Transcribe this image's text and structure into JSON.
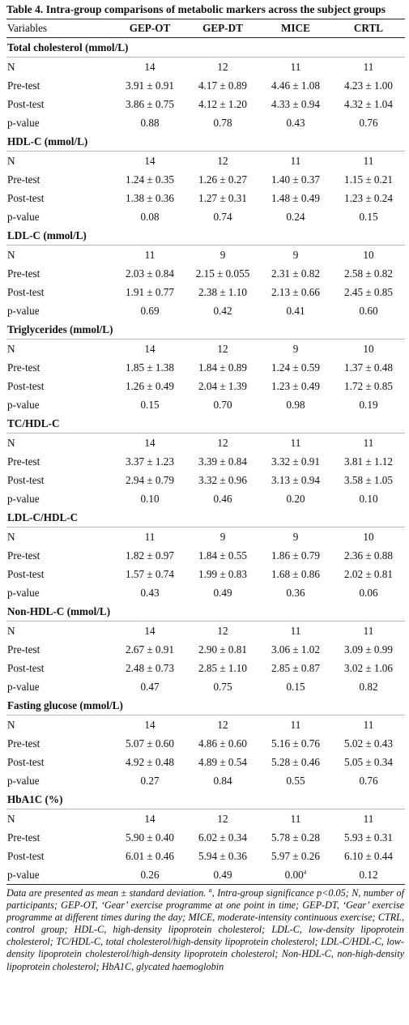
{
  "caption": "Table 4. Intra-group comparisons of metabolic markers across the subject groups",
  "columns": [
    "Variables",
    "GEP-OT",
    "GEP-DT",
    "MICE",
    "CRTL"
  ],
  "sections": [
    {
      "title": "Total cholesterol (mmol/L)",
      "rows": [
        {
          "label": "N",
          "values": [
            "14",
            "12",
            "11",
            "11"
          ]
        },
        {
          "label": "Pre-test",
          "values": [
            "3.91 ± 0.91",
            "4.17 ± 0.89",
            "4.46 ± 1.08",
            "4.23 ± 1.00"
          ]
        },
        {
          "label": "Post-test",
          "values": [
            "3.86 ± 0.75",
            "4.12 ± 1.20",
            "4.33 ± 0.94",
            "4.32 ± 1.04"
          ]
        },
        {
          "label": "p-value",
          "values": [
            "0.88",
            "0.78",
            "0.43",
            "0.76"
          ]
        }
      ]
    },
    {
      "title": "HDL-C (mmol/L)",
      "rows": [
        {
          "label": "N",
          "values": [
            "14",
            "12",
            "11",
            "11"
          ]
        },
        {
          "label": "Pre-test",
          "values": [
            "1.24 ± 0.35",
            "1.26 ± 0.27",
            "1.40 ± 0.37",
            "1.15 ± 0.21"
          ]
        },
        {
          "label": "Post-test",
          "values": [
            "1.38 ± 0.36",
            "1.27 ± 0.31",
            "1.48 ± 0.49",
            "1.23 ± 0.24"
          ]
        },
        {
          "label": "p-value",
          "values": [
            "0.08",
            "0.74",
            "0.24",
            "0.15"
          ]
        }
      ]
    },
    {
      "title": "LDL-C (mmol/L)",
      "rows": [
        {
          "label": "N",
          "values": [
            "11",
            "9",
            "9",
            "10"
          ]
        },
        {
          "label": "Pre-test",
          "values": [
            "2.03 ± 0.84",
            "2.15 ± 0.055",
            "2.31 ± 0.82",
            "2.58 ± 0.82"
          ]
        },
        {
          "label": "Post-test",
          "values": [
            "1.91 ± 0.77",
            "2.38 ± 1.10",
            "2.13 ± 0.66",
            "2.45 ± 0.85"
          ]
        },
        {
          "label": "p-value",
          "values": [
            "0.69",
            "0.42",
            "0.41",
            "0.60"
          ]
        }
      ]
    },
    {
      "title": "Triglycerides (mmol/L)",
      "rows": [
        {
          "label": "N",
          "values": [
            "14",
            "12",
            "9",
            "10"
          ]
        },
        {
          "label": "Pre-test",
          "values": [
            "1.85 ± 1.38",
            "1.84 ± 0.89",
            "1.24 ± 0.59",
            "1.37 ± 0.48"
          ]
        },
        {
          "label": "Post-test",
          "values": [
            "1.26 ± 0.49",
            "2.04 ± 1.39",
            "1.23 ± 0.49",
            "1.72 ± 0.85"
          ]
        },
        {
          "label": "p-value",
          "values": [
            "0.15",
            "0.70",
            "0.98",
            "0.19"
          ]
        }
      ]
    },
    {
      "title": "TC/HDL-C",
      "rows": [
        {
          "label": "N",
          "values": [
            "14",
            "12",
            "11",
            "11"
          ]
        },
        {
          "label": "Pre-test",
          "values": [
            "3.37 ± 1.23",
            "3.39 ± 0.84",
            "3.32 ± 0.91",
            "3.81 ± 1.12"
          ]
        },
        {
          "label": "Post-test",
          "values": [
            "2.94 ± 0.79",
            "3.32 ± 0.96",
            "3.13 ± 0.94",
            "3.58 ± 1.05"
          ]
        },
        {
          "label": "p-value",
          "values": [
            "0.10",
            "0.46",
            "0.20",
            "0.10"
          ]
        }
      ]
    },
    {
      "title": "LDL-C/HDL-C",
      "rows": [
        {
          "label": "N",
          "values": [
            "11",
            "9",
            "9",
            "10"
          ]
        },
        {
          "label": "Pre-test",
          "values": [
            "1.82 ± 0.97",
            "1.84 ± 0.55",
            "1.86 ± 0.79",
            "2.36 ± 0.88"
          ]
        },
        {
          "label": "Post-test",
          "values": [
            "1.57 ± 0.74",
            "1.99 ± 0.83",
            "1.68 ± 0.86",
            "2.02 ± 0.81"
          ]
        },
        {
          "label": "p-value",
          "values": [
            "0.43",
            "0.49",
            "0.36",
            "0.06"
          ]
        }
      ]
    },
    {
      "title": "Non-HDL-C (mmol/L)",
      "rows": [
        {
          "label": "N",
          "values": [
            "14",
            "12",
            "11",
            "11"
          ]
        },
        {
          "label": "Pre-test",
          "values": [
            "2.67 ± 0.91",
            "2.90 ± 0.81",
            "3.06 ± 1.02",
            "3.09 ± 0.99"
          ]
        },
        {
          "label": "Post-test",
          "values": [
            "2.48 ± 0.73",
            "2.85 ± 1.10",
            "2.85 ± 0.87",
            "3.02 ± 1.06"
          ]
        },
        {
          "label": "p-value",
          "values": [
            "0.47",
            "0.75",
            "0.15",
            "0.82"
          ]
        }
      ]
    },
    {
      "title": "Fasting glucose (mmol/L)",
      "rows": [
        {
          "label": "N",
          "values": [
            "14",
            "12",
            "11",
            "11"
          ]
        },
        {
          "label": "Pre-test",
          "values": [
            "5.07 ± 0.60",
            "4.86 ± 0.60",
            "5.16 ± 0.76",
            "5.02 ± 0.43"
          ]
        },
        {
          "label": "Post-test",
          "values": [
            "4.92 ± 0.48",
            "4.89 ± 0.54",
            "5.28 ± 0.46",
            "5.05 ± 0.34"
          ]
        },
        {
          "label": "p-value",
          "values": [
            "0.27",
            "0.84",
            "0.55",
            "0.76"
          ]
        }
      ]
    },
    {
      "title": "HbA1C (%)",
      "rows": [
        {
          "label": "N",
          "values": [
            "14",
            "12",
            "11",
            "11"
          ]
        },
        {
          "label": "Pre-test",
          "values": [
            "5.90 ± 0.40",
            "6.02 ± 0.34",
            "5.78 ± 0.28",
            "5.93 ± 0.31"
          ]
        },
        {
          "label": "Post-test",
          "values": [
            "6.01 ± 0.46",
            "5.94 ± 0.36",
            "5.97 ± 0.26",
            "6.10 ± 0.44"
          ]
        },
        {
          "label": "p-value",
          "values": [
            "0.26",
            "0.49",
            "0.00",
            "0.12"
          ],
          "superscripts": [
            "",
            "",
            "a",
            ""
          ]
        }
      ]
    }
  ],
  "footnote": {
    "lead": "Data are presented as mean ± standard deviation. ",
    "mark": "a",
    "text": ", Intra-group significance p<0.05; N, number of participants; GEP-OT, ‘Gear’ exercise programme at one point in time; GEP-DT, ‘Gear’ exercise programme at different times during the day; MICE, moderate-intensity continuous exercise; CTRL, control group; HDL-C, high-density lipoprotein cholesterol; LDL-C, low-density lipoprotein cholesterol; TC/HDL-C, total cholesterol/high-density lipoprotein cholesterol; LDL-C/HDL-C, low-density lipoprotein cholesterol/high-density lipoprotein cholesterol; Non-HDL-C, non-high-density lipoprotein cholesterol; HbA1C, glycated haemoglobin"
  }
}
